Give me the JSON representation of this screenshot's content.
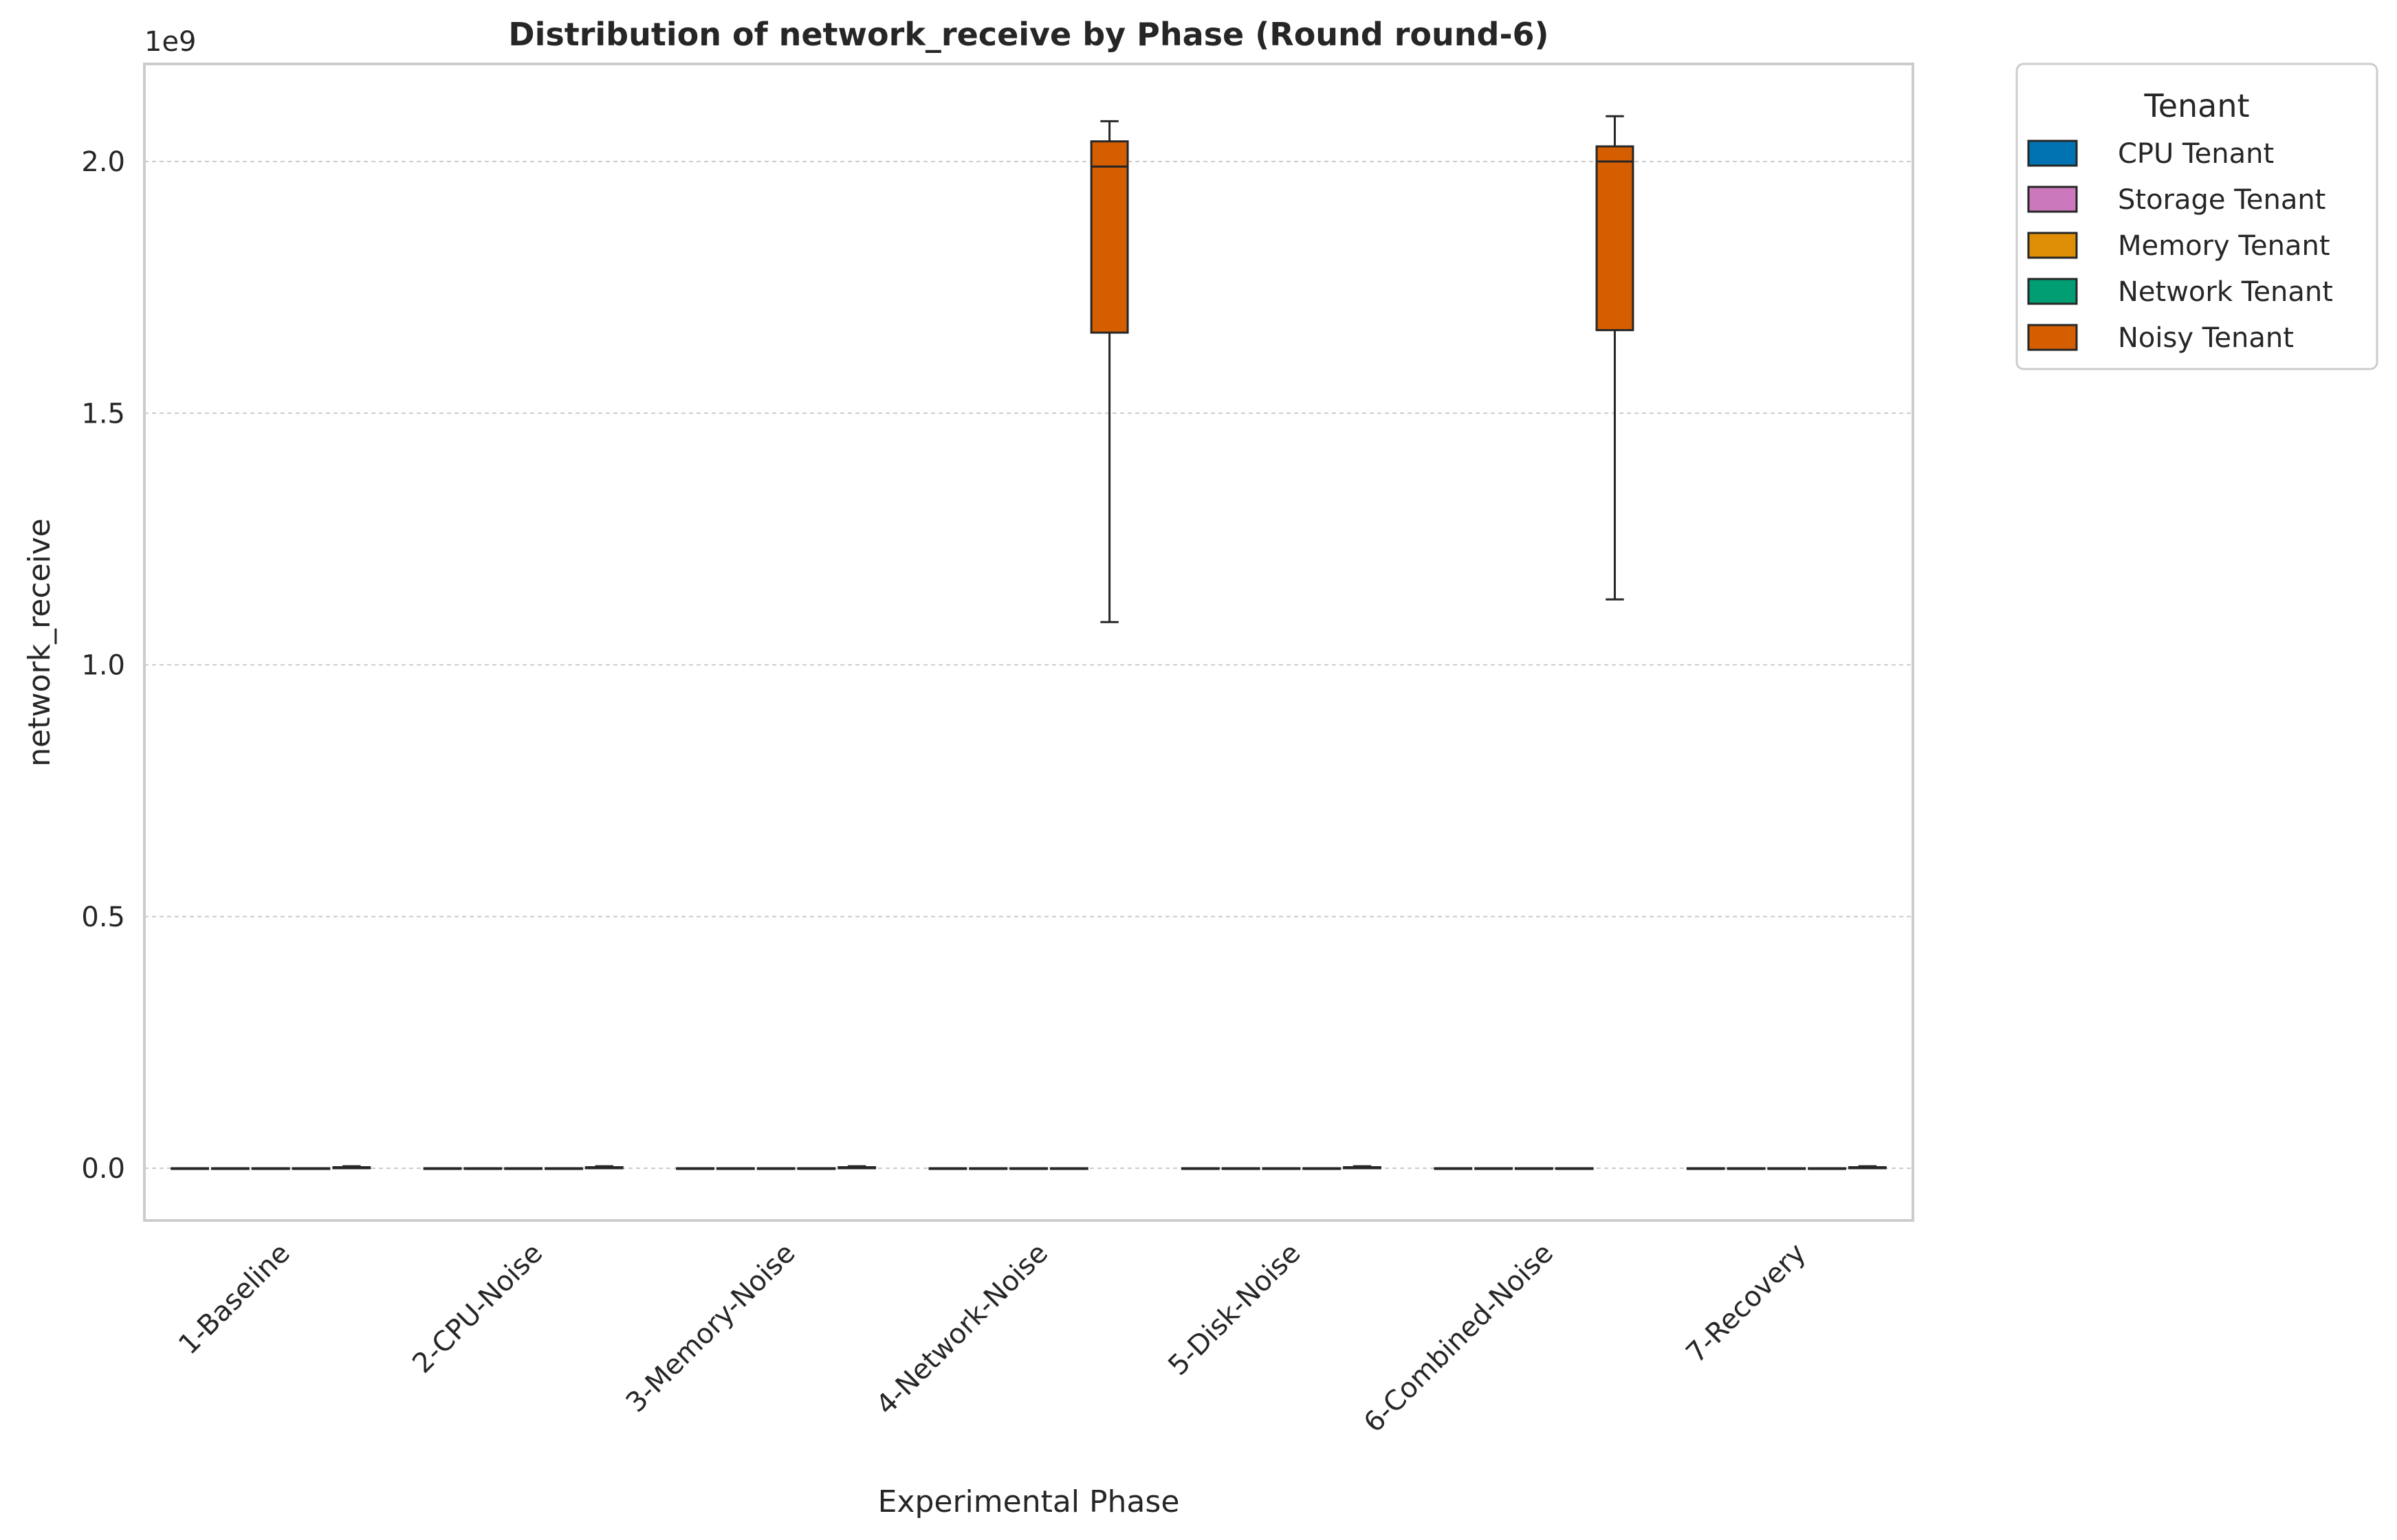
{
  "chart_data": {
    "type": "box",
    "title": "Distribution of network_receive by Phase (Round round-6)",
    "xlabel": "Experimental Phase",
    "ylabel": "network_receive",
    "y_offset_label": "1e9",
    "y_scale_factor": 1000000000,
    "ylim": [
      -0.1,
      2.2
    ],
    "yticks": [
      0.0,
      0.5,
      1.0,
      1.5,
      2.0
    ],
    "ytick_labels": [
      "0.0",
      "0.5",
      "1.0",
      "1.5",
      "2.0"
    ],
    "grid": "horizontal dashed",
    "categories": [
      "1-Baseline",
      "2-CPU-Noise",
      "3-Memory-Noise",
      "4-Network-Noise",
      "5-Disk-Noise",
      "6-Combined-Noise",
      "7-Recovery"
    ],
    "legend": {
      "title": "Tenant",
      "placement": "outside upper right"
    },
    "series": [
      {
        "name": "CPU Tenant",
        "color": "#0173b2",
        "boxes": [
          {
            "min": 0,
            "q1": 0,
            "median": 0,
            "q3": 0,
            "max": 0
          },
          {
            "min": 0,
            "q1": 0,
            "median": 0,
            "q3": 0,
            "max": 0
          },
          {
            "min": 0,
            "q1": 0,
            "median": 0,
            "q3": 0,
            "max": 0
          },
          {
            "min": 0,
            "q1": 0,
            "median": 0,
            "q3": 0,
            "max": 0
          },
          {
            "min": 0,
            "q1": 0,
            "median": 0,
            "q3": 0,
            "max": 0
          },
          {
            "min": 0,
            "q1": 0,
            "median": 0,
            "q3": 0,
            "max": 0
          },
          {
            "min": 0,
            "q1": 0,
            "median": 0,
            "q3": 0,
            "max": 0
          }
        ]
      },
      {
        "name": "Storage Tenant",
        "color": "#cc78bc",
        "boxes": [
          {
            "min": 0,
            "q1": 0,
            "median": 0,
            "q3": 0,
            "max": 0
          },
          {
            "min": 0,
            "q1": 0,
            "median": 0,
            "q3": 0,
            "max": 0
          },
          {
            "min": 0,
            "q1": 0,
            "median": 0,
            "q3": 0,
            "max": 0
          },
          {
            "min": 0,
            "q1": 0,
            "median": 0,
            "q3": 0,
            "max": 0
          },
          {
            "min": 0,
            "q1": 0,
            "median": 0,
            "q3": 0,
            "max": 0
          },
          {
            "min": 0,
            "q1": 0,
            "median": 0,
            "q3": 0,
            "max": 0
          },
          {
            "min": 0,
            "q1": 0,
            "median": 0,
            "q3": 0,
            "max": 0
          }
        ]
      },
      {
        "name": "Memory Tenant",
        "color": "#de8f05",
        "boxes": [
          {
            "min": 0,
            "q1": 0,
            "median": 0,
            "q3": 0,
            "max": 0
          },
          {
            "min": 0,
            "q1": 0,
            "median": 0,
            "q3": 0,
            "max": 0
          },
          {
            "min": 0,
            "q1": 0,
            "median": 0,
            "q3": 0,
            "max": 0
          },
          {
            "min": 0,
            "q1": 0,
            "median": 0,
            "q3": 0,
            "max": 0
          },
          {
            "min": 0,
            "q1": 0,
            "median": 0,
            "q3": 0,
            "max": 0
          },
          {
            "min": 0,
            "q1": 0,
            "median": 0,
            "q3": 0,
            "max": 0
          },
          {
            "min": 0,
            "q1": 0,
            "median": 0,
            "q3": 0,
            "max": 0
          }
        ]
      },
      {
        "name": "Network Tenant",
        "color": "#029e73",
        "boxes": [
          {
            "min": 0,
            "q1": 0,
            "median": 0,
            "q3": 0,
            "max": 0
          },
          {
            "min": 0,
            "q1": 0,
            "median": 0,
            "q3": 0,
            "max": 0
          },
          {
            "min": 0,
            "q1": 0,
            "median": 0,
            "q3": 0,
            "max": 0
          },
          {
            "min": 0,
            "q1": 0,
            "median": 0,
            "q3": 0,
            "max": 0
          },
          {
            "min": 0,
            "q1": 0,
            "median": 0,
            "q3": 0,
            "max": 0
          },
          {
            "min": 0,
            "q1": 0,
            "median": 0,
            "q3": 0,
            "max": 0
          },
          {
            "min": 0,
            "q1": 0,
            "median": 0,
            "q3": 0,
            "max": 0
          }
        ]
      },
      {
        "name": "Noisy Tenant",
        "color": "#d55e00",
        "boxes": [
          {
            "min": 0,
            "q1": 0,
            "median": 0,
            "q3": 0.002,
            "max": 0.004
          },
          {
            "min": 0,
            "q1": 0,
            "median": 0,
            "q3": 0.002,
            "max": 0.004
          },
          {
            "min": 0,
            "q1": 0,
            "median": 0,
            "q3": 0.002,
            "max": 0.004
          },
          {
            "min": 1.085,
            "q1": 1.66,
            "median": 1.99,
            "q3": 2.04,
            "max": 2.08
          },
          {
            "min": 0,
            "q1": 0,
            "median": 0,
            "q3": 0.002,
            "max": 0.004
          },
          {
            "min": 1.13,
            "q1": 1.665,
            "median": 2.0,
            "q3": 2.03,
            "max": 2.09
          },
          {
            "min": 0,
            "q1": 0,
            "median": 0,
            "q3": 0.002,
            "max": 0.004
          }
        ]
      }
    ]
  }
}
